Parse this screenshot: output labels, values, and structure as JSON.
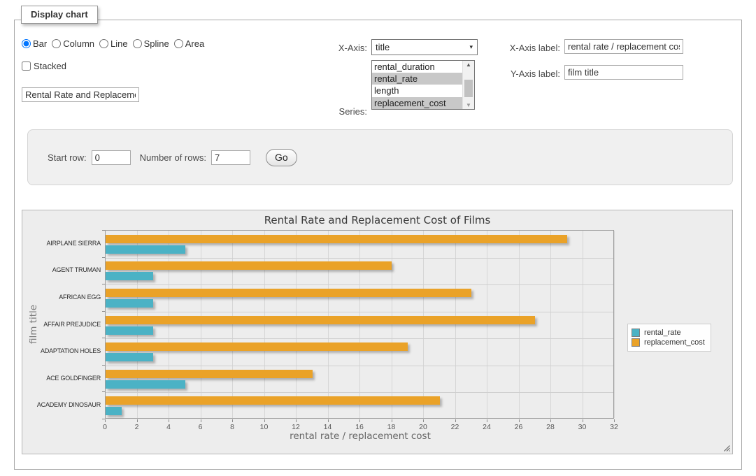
{
  "panel": {
    "tab_title": "Display chart"
  },
  "chart_type": {
    "options": [
      "Bar",
      "Column",
      "Line",
      "Spline",
      "Area"
    ],
    "selected": "Bar",
    "stacked_label": "Stacked",
    "stacked_checked": false
  },
  "title_input": {
    "value": "Rental Rate and Replacemer"
  },
  "x_axis_select": {
    "caption": "X-Axis:",
    "selected": "title"
  },
  "series_select": {
    "caption": "Series:",
    "options": [
      {
        "text": "rental_duration",
        "selected": false
      },
      {
        "text": "rental_rate",
        "selected": true
      },
      {
        "text": "length",
        "selected": false
      },
      {
        "text": "replacement_cost",
        "selected": true
      }
    ]
  },
  "x_axis_label_field": {
    "caption": "X-Axis label:",
    "value": "rental rate / replacement cost"
  },
  "y_axis_label_field": {
    "caption": "Y-Axis label:",
    "value": "film title"
  },
  "row_controls": {
    "start_row_label": "Start row:",
    "start_row_value": "0",
    "num_rows_label": "Number of rows:",
    "num_rows_value": "7",
    "go_label": "Go"
  },
  "icons": {
    "dropdown_arrow": "▾",
    "scroll_up_arrow": "▲",
    "scroll_down_arrow": "▼"
  },
  "chart_data": {
    "type": "bar",
    "orientation": "horizontal",
    "title": "Rental Rate and Replacement Cost of Films",
    "categories": [
      "AIRPLANE SIERRA",
      "AGENT TRUMAN",
      "AFRICAN EGG",
      "AFFAIR PREJUDICE",
      "ADAPTATION HOLES",
      "ACE GOLDFINGER",
      "ACADEMY DINOSAUR"
    ],
    "series": [
      {
        "name": "rental_rate",
        "color": "#4bb2c5",
        "values": [
          4.99,
          2.99,
          2.99,
          2.99,
          2.99,
          4.99,
          0.99
        ]
      },
      {
        "name": "replacement_cost",
        "color": "#EAA228",
        "values": [
          28.99,
          17.99,
          22.99,
          26.99,
          18.99,
          12.99,
          20.99
        ]
      }
    ],
    "bar_order_top_to_bottom": [
      "replacement_cost",
      "rental_rate"
    ],
    "xlabel": "rental rate / replacement cost",
    "ylabel": "film title",
    "xlim": [
      0,
      32
    ],
    "xticks": [
      0,
      2,
      4,
      6,
      8,
      10,
      12,
      14,
      16,
      18,
      20,
      22,
      24,
      26,
      28,
      30,
      32
    ],
    "grid": true,
    "legend_position": "right"
  }
}
